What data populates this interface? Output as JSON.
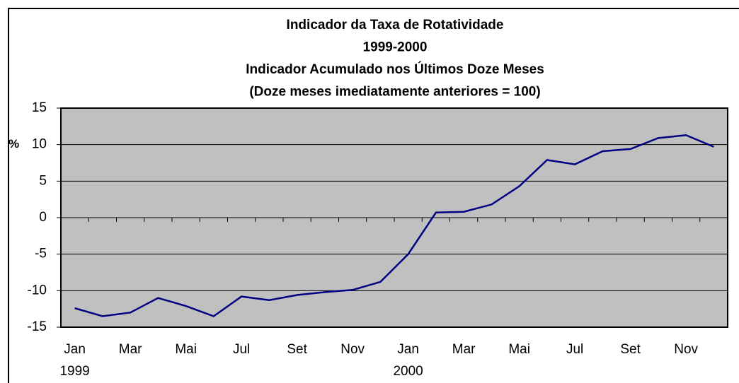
{
  "chart_data": {
    "type": "line",
    "title": [
      "Indicador da Taxa de Rotatividade",
      "1999-2000",
      "Indicador Acumulado nos Últimos Doze Meses",
      "(Doze meses imediatamente anteriores = 100)"
    ],
    "y_label": "%",
    "categories": [
      [
        "Jan",
        "1999"
      ],
      null,
      [
        "Mar"
      ],
      null,
      [
        "Mai"
      ],
      null,
      [
        "Jul"
      ],
      null,
      [
        "Set"
      ],
      null,
      [
        "Nov"
      ],
      null,
      [
        "Jan",
        "2000"
      ],
      null,
      [
        "Mar"
      ],
      null,
      [
        "Mai"
      ],
      null,
      [
        "Jul"
      ],
      null,
      [
        "Set"
      ],
      null,
      [
        "Nov"
      ],
      null
    ],
    "series": [
      {
        "color": "#000080",
        "values": [
          -12.4,
          -13.5,
          -13.0,
          -11.0,
          -12.1,
          -13.5,
          -10.8,
          -11.3,
          -10.6,
          -10.2,
          -9.9,
          -8.8,
          -5.0,
          0.7,
          0.8,
          1.8,
          4.3,
          7.9,
          7.3,
          9.1,
          9.4,
          10.9,
          11.3,
          9.7
        ]
      }
    ],
    "ylim": [
      -15,
      15
    ],
    "yticks": [
      -15,
      -10,
      -5,
      0,
      5,
      10,
      15
    ],
    "grid": true,
    "plot_background": "#c0c0c0"
  }
}
